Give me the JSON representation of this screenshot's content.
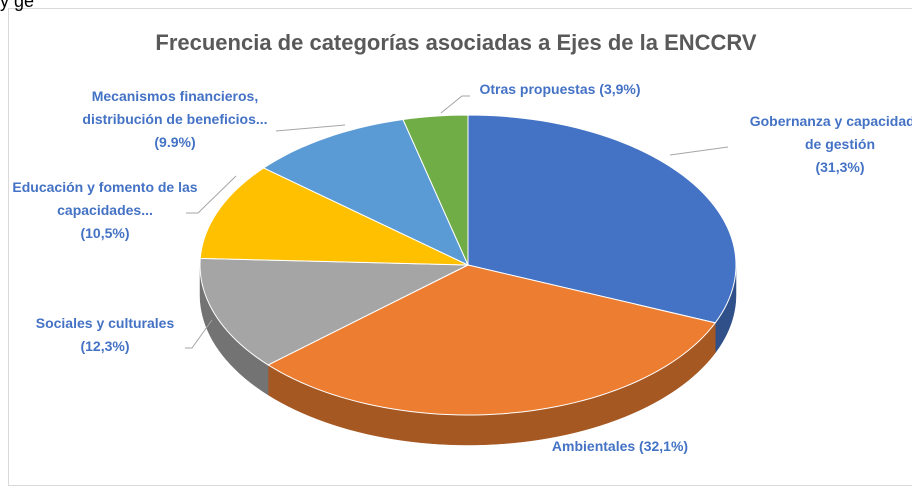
{
  "header_fragment": "y ge",
  "chart_data": {
    "type": "pie",
    "title": "Frecuencia de categorías asociadas a Ejes de la ENCCRV",
    "categories": [
      "Gobernanza y capacidades de gestión",
      "Ambientales",
      "Sociales y culturales",
      "Educación y fomento de las capacidades...",
      "Mecanismos financieros, distribución de beneficios...",
      "Otras propuestas"
    ],
    "values": [
      31.3,
      32.1,
      12.3,
      10.5,
      9.9,
      3.9
    ],
    "value_labels": [
      "(31,3%)",
      "(32,1%)",
      "(12,3%)",
      "(10,5%)",
      "(9.9%)",
      "(3,9%)"
    ],
    "colors": [
      "#4472c4",
      "#ed7d31",
      "#a5a5a5",
      "#ffc000",
      "#5b9bd5",
      "#70ad47"
    ]
  }
}
